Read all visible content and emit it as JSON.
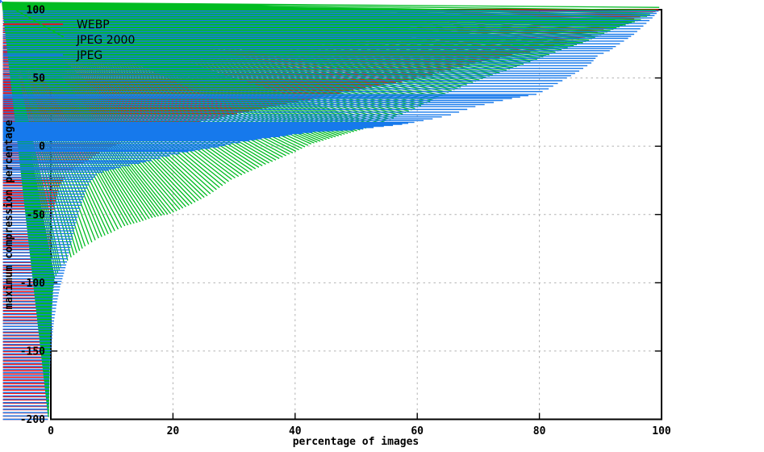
{
  "chart_data": {
    "type": "scatter",
    "title": "",
    "xlabel": "percentage of images",
    "ylabel": "maximum compression percentage",
    "xlim": [
      0,
      100
    ],
    "ylim": [
      -200,
      100
    ],
    "xticks": [
      0,
      20,
      40,
      60,
      80,
      100
    ],
    "yticks": [
      100,
      50,
      0,
      -50,
      -100,
      -150,
      -200
    ],
    "grid": true,
    "grid_color": "#b2b2b2",
    "axis_color": "#000000",
    "background": "#ffffff",
    "legend_position": "top-left-inside",
    "series": [
      {
        "name": "WEBP",
        "marker": "plus",
        "color": "#f01010",
        "points": [
          [
            0,
            -200
          ],
          [
            0.1,
            -155
          ],
          [
            0.2,
            -125
          ],
          [
            0.35,
            -95
          ],
          [
            0.5,
            -73
          ],
          [
            0.7,
            -58
          ],
          [
            0.9,
            -50
          ],
          [
            1.2,
            -42
          ],
          [
            1.6,
            -34
          ],
          [
            2,
            -29
          ],
          [
            3,
            -21
          ],
          [
            4,
            -17
          ],
          [
            5,
            -14
          ],
          [
            6.6,
            -10
          ],
          [
            8.5,
            -5
          ],
          [
            10.5,
            0
          ],
          [
            12,
            2.5
          ],
          [
            14,
            6
          ],
          [
            17,
            10
          ],
          [
            20,
            13
          ],
          [
            25,
            18
          ],
          [
            30,
            23
          ],
          [
            35,
            27.5
          ],
          [
            40,
            32
          ],
          [
            45,
            36
          ],
          [
            50,
            41
          ],
          [
            55,
            45
          ],
          [
            60,
            49
          ],
          [
            65,
            55
          ],
          [
            70,
            61
          ],
          [
            75,
            66
          ],
          [
            80,
            70
          ],
          [
            85,
            76
          ],
          [
            88,
            80
          ],
          [
            91,
            85
          ],
          [
            94,
            90
          ],
          [
            97,
            95
          ],
          [
            99,
            97.5
          ],
          [
            100,
            100
          ]
        ]
      },
      {
        "name": "JPEG 2000",
        "marker": "cross",
        "color": "#00bb22",
        "points": [
          [
            0,
            -200
          ],
          [
            0.15,
            -160
          ],
          [
            0.3,
            -140
          ],
          [
            0.5,
            -122
          ],
          [
            0.7,
            -108
          ],
          [
            1,
            -99
          ],
          [
            2,
            -90
          ],
          [
            3.7,
            -83
          ],
          [
            6,
            -75
          ],
          [
            8.2,
            -69
          ],
          [
            10.3,
            -65
          ],
          [
            12.5,
            -60
          ],
          [
            15,
            -57
          ],
          [
            17,
            -54
          ],
          [
            20,
            -51
          ],
          [
            23,
            -45
          ],
          [
            26,
            -38
          ],
          [
            30,
            -26
          ],
          [
            35,
            -16
          ],
          [
            40,
            -6.5
          ],
          [
            43,
            0
          ],
          [
            46,
            4
          ],
          [
            50,
            9
          ],
          [
            54,
            14
          ],
          [
            57,
            20
          ],
          [
            60,
            26
          ],
          [
            63,
            32
          ],
          [
            66,
            39
          ],
          [
            70,
            46
          ],
          [
            75,
            54
          ],
          [
            80,
            62
          ],
          [
            84,
            69
          ],
          [
            88,
            75
          ],
          [
            91,
            81
          ],
          [
            93,
            85
          ],
          [
            95,
            88
          ],
          [
            97,
            91
          ],
          [
            99,
            96
          ],
          [
            100,
            100
          ]
        ]
      },
      {
        "name": "JPEG",
        "marker": "asterisk",
        "color": "#1679ec",
        "points": [
          [
            0,
            -200
          ],
          [
            0.3,
            -168
          ],
          [
            0.5,
            -152
          ],
          [
            0.8,
            -136
          ],
          [
            1,
            -128
          ],
          [
            1.5,
            -114
          ],
          [
            2,
            -103
          ],
          [
            2.5,
            -95
          ],
          [
            3,
            -87
          ],
          [
            3.5,
            -78
          ],
          [
            4,
            -68
          ],
          [
            4.5,
            -58
          ],
          [
            5,
            -50
          ],
          [
            5.6,
            -41
          ],
          [
            6.2,
            -33
          ],
          [
            7,
            -26
          ],
          [
            8,
            -21
          ],
          [
            9,
            -19
          ],
          [
            10,
            -17.5
          ],
          [
            12,
            -15.5
          ],
          [
            15,
            -12.5
          ],
          [
            17,
            -10.5
          ],
          [
            20,
            -7
          ],
          [
            23,
            -4
          ],
          [
            25,
            -2.5
          ],
          [
            28,
            -0.5
          ],
          [
            30,
            1.5
          ],
          [
            33,
            4
          ],
          [
            35,
            5.5
          ],
          [
            38,
            7
          ],
          [
            40,
            8.5
          ],
          [
            45,
            11
          ],
          [
            50,
            12
          ],
          [
            55,
            14.5
          ],
          [
            58,
            16
          ],
          [
            60,
            17.5
          ],
          [
            63,
            20
          ],
          [
            66,
            23
          ],
          [
            70,
            29
          ],
          [
            73,
            32
          ],
          [
            76,
            35
          ],
          [
            80,
            38
          ],
          [
            82,
            42
          ],
          [
            85,
            50
          ],
          [
            87,
            55
          ],
          [
            89,
            61
          ],
          [
            90,
            66
          ],
          [
            92,
            70
          ],
          [
            93,
            73
          ],
          [
            95,
            79
          ],
          [
            96,
            82
          ],
          [
            97,
            86
          ],
          [
            98,
            90
          ],
          [
            99,
            94
          ],
          [
            100,
            99
          ]
        ]
      }
    ]
  }
}
